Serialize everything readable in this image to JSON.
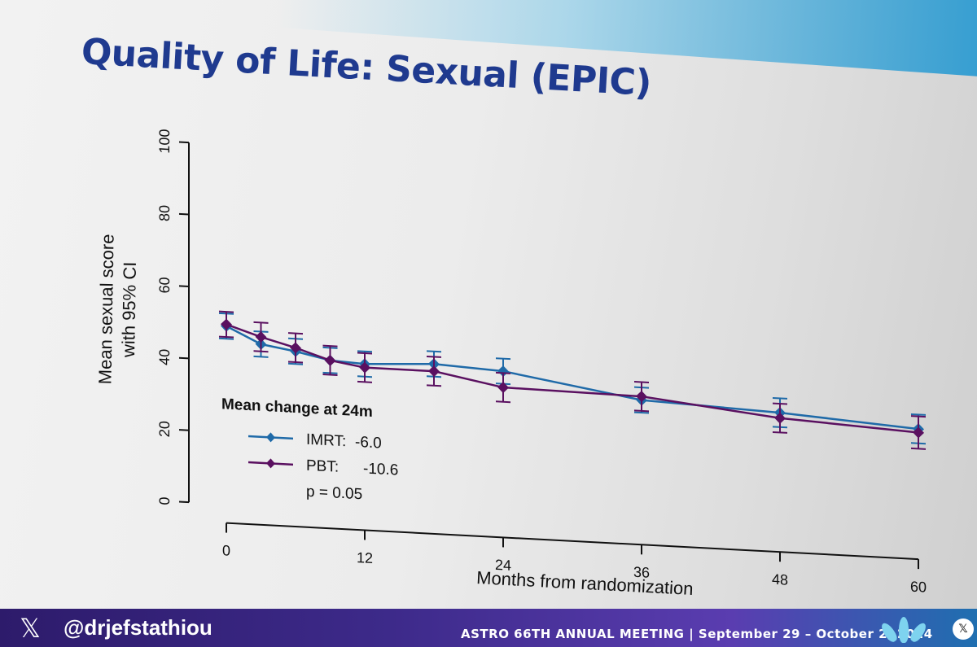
{
  "slide": {
    "title": "Quality of Life: Sexual (EPIC)"
  },
  "footer": {
    "x_icon": "x-logo-icon",
    "handle": "@drjefstathiou",
    "meeting": "ASTRO 66TH ANNUAL MEETING | September 29 – October 2, 2024",
    "logo_icon": "astro-leaf-logo-icon"
  },
  "chart_data": {
    "type": "line",
    "title": "",
    "xlabel": "Months from randomization",
    "ylabel": "Mean sexual score with 95% CI",
    "ylabel_lines": [
      "Mean sexual score",
      "with 95% CI"
    ],
    "xlim": [
      0,
      60
    ],
    "ylim": [
      0,
      100
    ],
    "x_ticks": [
      0,
      12,
      24,
      36,
      48,
      60
    ],
    "y_ticks": [
      0,
      20,
      40,
      60,
      80,
      100
    ],
    "grid": false,
    "series": [
      {
        "name": "IMRT",
        "color": "#1f6aa8",
        "marker": "diamond",
        "x": [
          0,
          3,
          6,
          9,
          12,
          18,
          24,
          36,
          48,
          60
        ],
        "y": [
          49.5,
          45,
          43.5,
          41.5,
          41,
          42,
          41,
          35,
          33.5,
          31
        ],
        "ci": [
          [
            46,
            53
          ],
          [
            41.5,
            48.5
          ],
          [
            40,
            47
          ],
          [
            38,
            45
          ],
          [
            37.5,
            44.5
          ],
          [
            38.5,
            45.5
          ],
          [
            37.5,
            44.5
          ],
          [
            31.5,
            38.5
          ],
          [
            29.5,
            37.5
          ],
          [
            27,
            35
          ]
        ]
      },
      {
        "name": "PBT",
        "color": "#5a1060",
        "marker": "diamond",
        "x": [
          0,
          3,
          6,
          9,
          12,
          18,
          24,
          36,
          48,
          60
        ],
        "y": [
          50,
          47,
          44.5,
          41.5,
          40,
          40,
          36.5,
          36,
          32,
          30
        ],
        "ci": [
          [
            46.5,
            53.5
          ],
          [
            43,
            51
          ],
          [
            40.5,
            48.5
          ],
          [
            37.5,
            45.5
          ],
          [
            36,
            44
          ],
          [
            36,
            44
          ],
          [
            32.5,
            40.5
          ],
          [
            32,
            40
          ],
          [
            28,
            36
          ],
          [
            25.5,
            34.5
          ]
        ]
      }
    ],
    "legend": {
      "title": "Mean change at 24m",
      "placement": "bottom-left",
      "entries": [
        {
          "label": "IMRT:",
          "value": "-6.0"
        },
        {
          "label": "PBT:",
          "value": "-10.6"
        }
      ],
      "note": "p = 0.05"
    }
  }
}
